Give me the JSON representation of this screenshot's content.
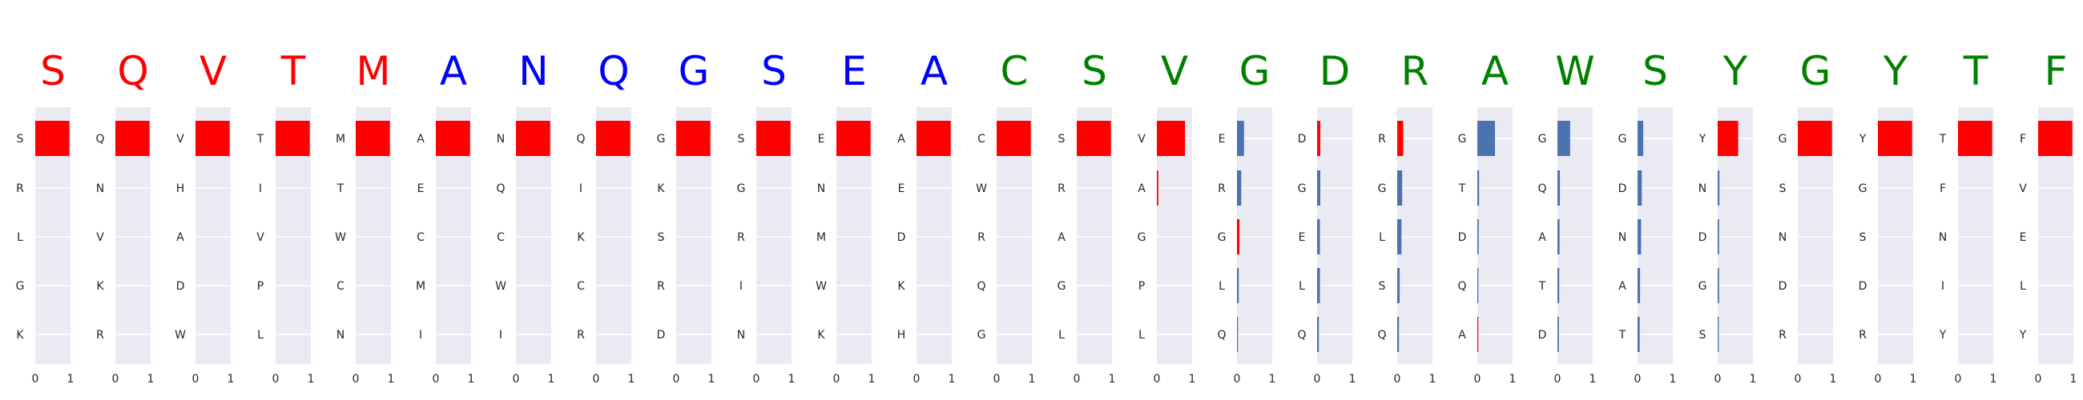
{
  "colors": {
    "group1": "#ff0000",
    "group2": "#0000ff",
    "group3": "#008000",
    "bar_red": "#ff0000",
    "bar_blue": "#4c72b0",
    "panel_bg": "#eaeaf2",
    "grid": "#ffffff"
  },
  "chart_data": {
    "type": "bar",
    "orientation": "horizontal",
    "xlim": [
      0,
      1
    ],
    "xticks": [
      "0",
      "1"
    ],
    "grid": true,
    "panels": [
      {
        "letter": "S",
        "group": "group1",
        "bar_color": "red",
        "labels": [
          "S",
          "R",
          "L",
          "G",
          "K"
        ],
        "values": [
          0.97,
          0,
          0,
          0,
          0
        ]
      },
      {
        "letter": "Q",
        "group": "group1",
        "bar_color": "red",
        "labels": [
          "Q",
          "N",
          "V",
          "K",
          "R"
        ],
        "values": [
          0.97,
          0,
          0,
          0,
          0
        ]
      },
      {
        "letter": "V",
        "group": "group1",
        "bar_color": "red",
        "labels": [
          "V",
          "H",
          "A",
          "D",
          "W"
        ],
        "values": [
          0.97,
          0,
          0,
          0,
          0
        ]
      },
      {
        "letter": "T",
        "group": "group1",
        "bar_color": "red",
        "labels": [
          "T",
          "I",
          "V",
          "P",
          "L"
        ],
        "values": [
          0.97,
          0,
          0,
          0,
          0
        ]
      },
      {
        "letter": "M",
        "group": "group1",
        "bar_color": "red",
        "labels": [
          "M",
          "T",
          "W",
          "C",
          "N"
        ],
        "values": [
          0.97,
          0,
          0,
          0,
          0
        ]
      },
      {
        "letter": "A",
        "group": "group2",
        "bar_color": "red",
        "labels": [
          "A",
          "E",
          "C",
          "M",
          "I"
        ],
        "values": [
          0.97,
          0,
          0,
          0,
          0
        ]
      },
      {
        "letter": "N",
        "group": "group2",
        "bar_color": "red",
        "labels": [
          "N",
          "Q",
          "C",
          "W",
          "I"
        ],
        "values": [
          0.97,
          0,
          0,
          0,
          0
        ]
      },
      {
        "letter": "Q",
        "group": "group2",
        "bar_color": "red",
        "labels": [
          "Q",
          "I",
          "K",
          "C",
          "R"
        ],
        "values": [
          0.97,
          0,
          0,
          0,
          0
        ]
      },
      {
        "letter": "G",
        "group": "group2",
        "bar_color": "red",
        "labels": [
          "G",
          "K",
          "S",
          "R",
          "D"
        ],
        "values": [
          0.97,
          0,
          0,
          0,
          0
        ]
      },
      {
        "letter": "S",
        "group": "group2",
        "bar_color": "red",
        "labels": [
          "S",
          "G",
          "R",
          "I",
          "N"
        ],
        "values": [
          0.97,
          0,
          0,
          0,
          0
        ]
      },
      {
        "letter": "E",
        "group": "group2",
        "bar_color": "red",
        "labels": [
          "E",
          "N",
          "M",
          "W",
          "K"
        ],
        "values": [
          0.97,
          0,
          0,
          0,
          0
        ]
      },
      {
        "letter": "A",
        "group": "group2",
        "bar_color": "red",
        "labels": [
          "A",
          "E",
          "D",
          "K",
          "H"
        ],
        "values": [
          0.97,
          0,
          0,
          0,
          0
        ]
      },
      {
        "letter": "C",
        "group": "group3",
        "bar_color": "red",
        "labels": [
          "C",
          "W",
          "R",
          "Q",
          "G"
        ],
        "values": [
          0.97,
          0,
          0,
          0,
          0
        ]
      },
      {
        "letter": "S",
        "group": "group3",
        "bar_color": "red",
        "labels": [
          "S",
          "R",
          "A",
          "G",
          "L"
        ],
        "values": [
          0.97,
          0,
          0,
          0,
          0
        ]
      },
      {
        "letter": "V",
        "group": "group3",
        "bar_color": "red",
        "labels": [
          "V",
          "A",
          "G",
          "P",
          "L"
        ],
        "values": [
          0.8,
          0.04,
          0,
          0,
          0
        ]
      },
      {
        "letter": "G",
        "group": "group3",
        "bar_color": "mixed",
        "labels": [
          "E",
          "R",
          "G",
          "L",
          "Q"
        ],
        "values": [
          0.2,
          0.12,
          0.07,
          0.05,
          0.02
        ],
        "colors": [
          "blue",
          "blue",
          "red",
          "blue",
          "blue"
        ]
      },
      {
        "letter": "D",
        "group": "group3",
        "bar_color": "blue",
        "labels": [
          "D",
          "G",
          "E",
          "L",
          "Q"
        ],
        "values": [
          0.09,
          0.09,
          0.08,
          0.08,
          0.05
        ],
        "colors": [
          "red",
          "blue",
          "blue",
          "blue",
          "blue"
        ]
      },
      {
        "letter": "R",
        "group": "group3",
        "bar_color": "blue",
        "labels": [
          "R",
          "G",
          "L",
          "S",
          "Q"
        ],
        "values": [
          0.17,
          0.14,
          0.12,
          0.07,
          0.05
        ],
        "colors": [
          "red",
          "blue",
          "blue",
          "blue",
          "blue"
        ]
      },
      {
        "letter": "A",
        "group": "group3",
        "bar_color": "blue",
        "labels": [
          "G",
          "T",
          "D",
          "Q",
          "A"
        ],
        "values": [
          0.5,
          0.05,
          0.04,
          0.03,
          0.02
        ],
        "colors": [
          "blue",
          "blue",
          "blue",
          "blue",
          "red"
        ]
      },
      {
        "letter": "W",
        "group": "group3",
        "bar_color": "blue",
        "labels": [
          "G",
          "Q",
          "A",
          "T",
          "D"
        ],
        "values": [
          0.36,
          0.07,
          0.06,
          0.05,
          0.04
        ],
        "colors": [
          "blue",
          "blue",
          "blue",
          "blue",
          "blue"
        ]
      },
      {
        "letter": "S",
        "group": "group3",
        "bar_color": "blue",
        "labels": [
          "G",
          "D",
          "N",
          "A",
          "T"
        ],
        "values": [
          0.16,
          0.12,
          0.1,
          0.07,
          0.06
        ],
        "colors": [
          "blue",
          "blue",
          "blue",
          "blue",
          "blue"
        ]
      },
      {
        "letter": "Y",
        "group": "group3",
        "bar_color": "red",
        "labels": [
          "Y",
          "N",
          "D",
          "G",
          "S"
        ],
        "values": [
          0.58,
          0.05,
          0.04,
          0.04,
          0.03
        ],
        "colors": [
          "red",
          "blue",
          "blue",
          "blue",
          "blue"
        ]
      },
      {
        "letter": "G",
        "group": "group3",
        "bar_color": "red",
        "labels": [
          "G",
          "S",
          "N",
          "D",
          "R"
        ],
        "values": [
          0.97,
          0,
          0,
          0,
          0
        ]
      },
      {
        "letter": "Y",
        "group": "group3",
        "bar_color": "red",
        "labels": [
          "Y",
          "G",
          "S",
          "D",
          "R"
        ],
        "values": [
          0.97,
          0,
          0,
          0,
          0
        ]
      },
      {
        "letter": "T",
        "group": "group3",
        "bar_color": "red",
        "labels": [
          "T",
          "F",
          "N",
          "I",
          "Y"
        ],
        "values": [
          0.97,
          0,
          0,
          0,
          0
        ]
      },
      {
        "letter": "F",
        "group": "group3",
        "bar_color": "red",
        "labels": [
          "F",
          "V",
          "E",
          "L",
          "Y"
        ],
        "values": [
          0.97,
          0,
          0,
          0,
          0
        ]
      }
    ]
  }
}
